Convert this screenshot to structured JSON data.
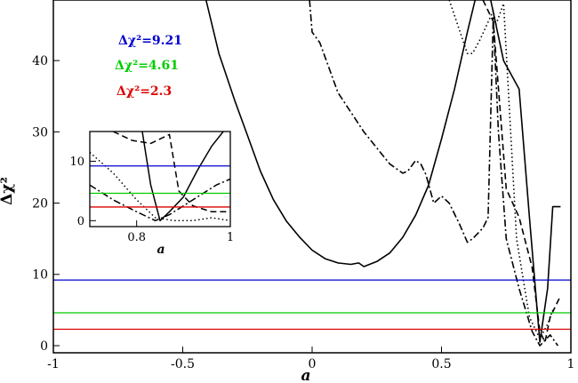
{
  "chart_data": {
    "type": "line",
    "xlabel": "a",
    "ylabel": "Δχ²",
    "xlim": [
      -1,
      1
    ],
    "ylim": [
      -1,
      48.5
    ],
    "x_ticks": [
      -1,
      -0.5,
      0,
      0.5,
      1
    ],
    "x_tick_labels": [
      "-1",
      "-0.5",
      "0",
      "0.5",
      "1"
    ],
    "y_ticks": [
      0,
      10,
      20,
      30,
      40
    ],
    "y_tick_labels": [
      "0",
      "10",
      "20",
      "30",
      "40"
    ],
    "grid": false,
    "series": [
      {
        "style": "solid",
        "color": "#000000",
        "points": [
          [
            -0.41,
            48.5
          ],
          [
            -0.36,
            41
          ],
          [
            -0.3,
            34.5
          ],
          [
            -0.25,
            29.5
          ],
          [
            -0.2,
            24.5
          ],
          [
            -0.15,
            20.5
          ],
          [
            -0.1,
            17.5
          ],
          [
            -0.05,
            15.3
          ],
          [
            0,
            13.4
          ],
          [
            0.05,
            12.2
          ],
          [
            0.1,
            11.6
          ],
          [
            0.15,
            11.4
          ],
          [
            0.18,
            11.6
          ],
          [
            0.2,
            11.1
          ],
          [
            0.25,
            11.8
          ],
          [
            0.3,
            13
          ],
          [
            0.35,
            15.2
          ],
          [
            0.4,
            18.3
          ],
          [
            0.45,
            22.5
          ],
          [
            0.5,
            29
          ],
          [
            0.55,
            36
          ],
          [
            0.6,
            44
          ],
          [
            0.63,
            48.5
          ]
        ]
      },
      {
        "style": "solid",
        "color": "#000000",
        "points": [
          [
            0.69,
            48.5
          ],
          [
            0.74,
            40
          ],
          [
            0.8,
            36
          ],
          [
            0.84,
            18
          ],
          [
            0.88,
            0.5
          ],
          [
            0.91,
            8
          ],
          [
            0.93,
            19.5
          ],
          [
            0.96,
            19.5
          ]
        ]
      },
      {
        "style": "dashdot",
        "color": "#000000",
        "points": [
          [
            -0.01,
            48.5
          ],
          [
            0,
            44
          ],
          [
            0.03,
            42.5
          ],
          [
            0.1,
            35.5
          ],
          [
            0.2,
            30
          ],
          [
            0.3,
            25.5
          ],
          [
            0.35,
            24.2
          ],
          [
            0.37,
            24.5
          ],
          [
            0.4,
            26
          ],
          [
            0.42,
            25.5
          ],
          [
            0.44,
            24
          ],
          [
            0.47,
            20
          ],
          [
            0.5,
            21
          ],
          [
            0.53,
            20
          ],
          [
            0.57,
            17
          ],
          [
            0.6,
            14.5
          ],
          [
            0.62,
            15
          ],
          [
            0.66,
            16.5
          ],
          [
            0.68,
            18
          ],
          [
            0.7,
            46
          ],
          [
            0.72,
            30
          ],
          [
            0.75,
            15
          ],
          [
            0.8,
            8
          ],
          [
            0.85,
            2
          ],
          [
            0.88,
            0
          ],
          [
            0.92,
            1.5
          ],
          [
            0.95,
            0
          ]
        ]
      },
      {
        "style": "dotted",
        "color": "#000000",
        "points": [
          [
            0.53,
            48.5
          ],
          [
            0.6,
            41
          ],
          [
            0.62,
            41
          ],
          [
            0.65,
            43
          ],
          [
            0.7,
            47
          ],
          [
            0.71,
            45
          ],
          [
            0.74,
            48
          ],
          [
            0.79,
            15
          ],
          [
            0.84,
            4
          ],
          [
            0.88,
            1
          ],
          [
            0.91,
            3
          ],
          [
            0.93,
            5
          ]
        ]
      },
      {
        "style": "dashed",
        "color": "#000000",
        "points": [
          [
            0.66,
            48.5
          ],
          [
            0.7,
            45.5
          ],
          [
            0.75,
            22
          ],
          [
            0.8,
            18
          ],
          [
            0.85,
            11
          ],
          [
            0.88,
            2
          ],
          [
            0.9,
            0.5
          ],
          [
            0.92,
            4
          ],
          [
            0.96,
            7
          ]
        ]
      }
    ],
    "hlines": [
      {
        "value": 9.21,
        "color": "#0000cc",
        "label": "Δχ²=9.21"
      },
      {
        "value": 4.61,
        "color": "#00cc00",
        "label": "Δχ²=4.61"
      },
      {
        "value": 2.3,
        "color": "#dd0000",
        "label": "Δχ²=2.3"
      }
    ],
    "inset": {
      "xlabel": "a",
      "xlim": [
        0.7,
        1
      ],
      "ylim": [
        -1,
        15
      ],
      "x_ticks": [
        0.8,
        1
      ],
      "x_tick_labels": [
        "0.8",
        "1"
      ],
      "y_ticks": [
        0,
        10
      ],
      "y_tick_labels": [
        "0",
        "10"
      ],
      "series": [
        {
          "style": "solid",
          "points": [
            [
              0.812,
              15
            ],
            [
              0.83,
              6
            ],
            [
              0.85,
              0
            ],
            [
              0.87,
              1.5
            ],
            [
              0.9,
              4
            ],
            [
              0.93,
              8.5
            ],
            [
              0.96,
              12.5
            ],
            [
              0.985,
              15
            ]
          ]
        },
        {
          "style": "dashed",
          "points": [
            [
              0.75,
              15
            ],
            [
              0.79,
              13.5
            ],
            [
              0.83,
              13
            ],
            [
              0.87,
              14.5
            ],
            [
              0.89,
              5
            ],
            [
              0.92,
              2.5
            ],
            [
              0.96,
              1.5
            ],
            [
              1,
              1.5
            ]
          ]
        },
        {
          "style": "dashdot",
          "points": [
            [
              0.7,
              6
            ],
            [
              0.75,
              3.5
            ],
            [
              0.8,
              1.5
            ],
            [
              0.84,
              0
            ],
            [
              0.87,
              1
            ],
            [
              0.9,
              2.5
            ],
            [
              0.93,
              4
            ],
            [
              0.97,
              6
            ],
            [
              1,
              7
            ]
          ]
        },
        {
          "style": "dotted",
          "points": [
            [
              0.7,
              11.5
            ],
            [
              0.75,
              8
            ],
            [
              0.8,
              3.5
            ],
            [
              0.84,
              0.5
            ],
            [
              0.88,
              0
            ],
            [
              0.92,
              0
            ],
            [
              0.96,
              0.5
            ],
            [
              1,
              0
            ]
          ]
        }
      ]
    }
  }
}
